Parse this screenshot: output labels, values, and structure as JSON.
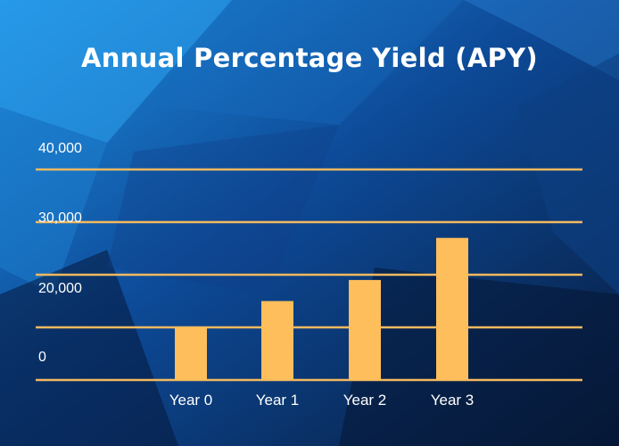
{
  "title": "Annual Percentage Yield (APY)",
  "colors": {
    "bar": "#ffbe5c",
    "gridline": "#f3b95f",
    "text": "#ffffff",
    "background_dark": "#0a1f44",
    "background_light": "#1a8ad8"
  },
  "chart_data": {
    "type": "bar",
    "title": "Annual Percentage Yield (APY)",
    "categories": [
      "Year 0",
      "Year 1",
      "Year 2",
      "Year 3"
    ],
    "values": [
      10000,
      15000,
      19000,
      27000
    ],
    "yticks": [
      0,
      20000,
      30000,
      40000
    ],
    "ytick_labels": [
      "0",
      "20,000",
      "30,000",
      "40,000"
    ],
    "ylim": [
      0,
      40000
    ],
    "grid": true,
    "legend": "none"
  }
}
